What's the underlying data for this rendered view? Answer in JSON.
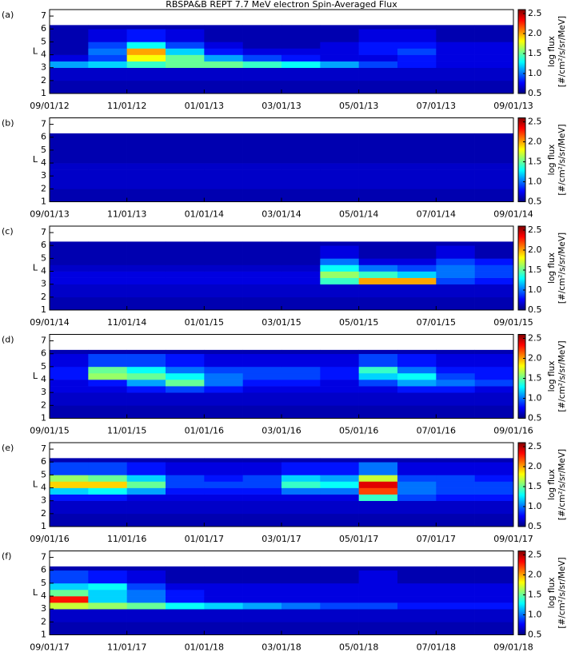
{
  "chart_data": [
    {
      "type": "heatmap",
      "title": "RBSPA&B REPT 7.7 MeV electron Spin-Averaged Flux",
      "label": "(a)",
      "ylabel": "L",
      "x_bins": [
        0,
        1,
        2,
        3,
        4,
        5,
        6,
        7,
        8,
        9,
        10,
        11,
        12
      ],
      "y_bins": [
        1,
        2,
        3,
        3.5,
        4,
        4.5,
        5,
        6,
        6.3
      ],
      "values": [
        [
          0.6,
          0.6,
          0.6,
          0.6,
          0.6,
          0.6,
          0.6,
          0.6,
          0.6,
          0.6,
          0.6,
          0.6
        ],
        [
          0.65,
          0.65,
          0.65,
          0.65,
          0.65,
          0.65,
          0.65,
          0.65,
          0.65,
          0.65,
          0.65,
          0.65
        ],
        [
          1.1,
          1.2,
          1.4,
          1.5,
          1.5,
          1.4,
          1.3,
          1.1,
          0.9,
          0.8,
          0.7,
          0.7
        ],
        [
          0.7,
          0.9,
          1.8,
          1.5,
          1.1,
          0.9,
          0.8,
          0.7,
          0.7,
          0.8,
          0.7,
          0.7
        ],
        [
          0.6,
          1.0,
          2.0,
          1.2,
          0.8,
          0.7,
          0.7,
          0.7,
          0.8,
          0.9,
          0.7,
          0.7
        ],
        [
          0.6,
          0.9,
          1.3,
          0.9,
          0.7,
          0.6,
          0.6,
          0.7,
          0.8,
          0.8,
          0.7,
          0.7
        ],
        [
          0.6,
          0.7,
          0.8,
          0.7,
          0.6,
          0.6,
          0.6,
          0.6,
          0.7,
          0.7,
          0.6,
          0.6
        ],
        [
          0.6,
          0.6,
          0.6,
          0.6,
          0.6,
          0.6,
          0.6,
          0.6,
          0.6,
          0.6,
          0.6,
          0.6
        ]
      ],
      "xlim": [
        0,
        12
      ],
      "ylim": [
        1,
        7.5
      ],
      "xticks": [
        {
          "value": 0,
          "label": "09/01/12"
        },
        {
          "value": 2,
          "label": "11/01/12"
        },
        {
          "value": 4,
          "label": "01/01/13"
        },
        {
          "value": 6,
          "label": "03/01/13"
        },
        {
          "value": 8,
          "label": "05/01/13"
        },
        {
          "value": 10,
          "label": "07/01/13"
        },
        {
          "value": 12,
          "label": "09/01/13"
        }
      ],
      "yticks": [
        1,
        2,
        3,
        4,
        5,
        6,
        7
      ],
      "clim": [
        0.5,
        2.6
      ],
      "cticks": [
        0.5,
        {
          "value": 1,
          "label": "1.0"
        },
        1.5,
        {
          "value": 2,
          "label": "2.0"
        },
        2.5
      ],
      "colorbar_label": [
        "log flux",
        "[#/cm²/s/sr/MeV]"
      ],
      "colormap": [
        "#00007f",
        "#0000ff",
        "#007fff",
        "#00ffff",
        "#7fff7f",
        "#ffff00",
        "#ff7f00",
        "#ff0000",
        "#7f0000"
      ]
    },
    {
      "type": "heatmap",
      "label": "(b)",
      "ylabel": "L",
      "x_bins": [
        0,
        1,
        2,
        3,
        4,
        5,
        6,
        7,
        8,
        9,
        10,
        11,
        12
      ],
      "y_bins": [
        1,
        2,
        3,
        3.5,
        4,
        4.5,
        5,
        6,
        6.3
      ],
      "values": [
        [
          0.6,
          0.6,
          0.6,
          0.6,
          0.6,
          0.6,
          0.6,
          0.6,
          0.6,
          0.6,
          0.6,
          0.6
        ],
        [
          0.65,
          0.65,
          0.65,
          0.65,
          0.65,
          0.65,
          0.65,
          0.65,
          0.65,
          0.65,
          0.65,
          0.65
        ],
        [
          0.65,
          0.65,
          0.65,
          0.65,
          0.65,
          0.65,
          0.65,
          0.65,
          0.65,
          0.65,
          0.65,
          0.65
        ],
        [
          0.65,
          0.65,
          0.65,
          0.65,
          0.65,
          0.65,
          0.65,
          0.65,
          0.65,
          0.65,
          0.65,
          0.65
        ],
        [
          0.6,
          0.6,
          0.6,
          0.6,
          0.6,
          0.6,
          0.6,
          0.6,
          0.6,
          0.6,
          0.6,
          0.6
        ],
        [
          0.6,
          0.6,
          0.6,
          0.6,
          0.6,
          0.6,
          0.6,
          0.6,
          0.6,
          0.6,
          0.6,
          0.6
        ],
        [
          0.6,
          0.6,
          0.6,
          0.6,
          0.6,
          0.6,
          0.6,
          0.6,
          0.6,
          0.6,
          0.6,
          0.6
        ],
        [
          0.6,
          0.6,
          0.6,
          0.6,
          0.6,
          0.6,
          0.6,
          0.6,
          0.6,
          0.6,
          0.6,
          0.6
        ]
      ],
      "xlim": [
        0,
        12
      ],
      "ylim": [
        1,
        7.5
      ],
      "xticks": [
        {
          "value": 0,
          "label": "09/01/13"
        },
        {
          "value": 2,
          "label": "11/01/13"
        },
        {
          "value": 4,
          "label": "01/01/14"
        },
        {
          "value": 6,
          "label": "03/01/14"
        },
        {
          "value": 8,
          "label": "05/01/14"
        },
        {
          "value": 10,
          "label": "07/01/14"
        },
        {
          "value": 12,
          "label": "09/01/14"
        }
      ],
      "yticks": [
        1,
        2,
        3,
        4,
        5,
        6,
        7
      ],
      "clim": [
        0.5,
        2.6
      ],
      "cticks": [
        0.5,
        {
          "value": 1,
          "label": "1.0"
        },
        1.5,
        {
          "value": 2,
          "label": "2.0"
        },
        2.5
      ],
      "colorbar_label": [
        "log flux",
        "[#/cm²/s/sr/MeV]"
      ],
      "colormap": [
        "#00007f",
        "#0000ff",
        "#007fff",
        "#00ffff",
        "#7fff7f",
        "#ffff00",
        "#ff7f00",
        "#ff0000",
        "#7f0000"
      ]
    },
    {
      "type": "heatmap",
      "label": "(c)",
      "ylabel": "L",
      "x_bins": [
        0,
        1,
        2,
        3,
        4,
        5,
        6,
        7,
        8,
        9,
        10,
        11,
        12
      ],
      "y_bins": [
        1,
        2,
        3,
        3.5,
        4,
        4.5,
        5,
        6,
        6.3
      ],
      "values": [
        [
          0.6,
          0.6,
          0.6,
          0.6,
          0.6,
          0.6,
          0.6,
          0.6,
          0.6,
          0.6,
          0.6,
          0.6
        ],
        [
          0.65,
          0.65,
          0.65,
          0.65,
          0.65,
          0.65,
          0.65,
          0.65,
          0.65,
          0.65,
          0.65,
          0.65
        ],
        [
          0.7,
          0.7,
          0.7,
          0.7,
          0.7,
          0.7,
          0.7,
          1.4,
          2.0,
          2.0,
          0.9,
          0.8
        ],
        [
          0.7,
          0.7,
          0.7,
          0.7,
          0.7,
          0.7,
          0.7,
          1.6,
          1.4,
          1.2,
          1.0,
          0.9
        ],
        [
          0.65,
          0.65,
          0.65,
          0.65,
          0.65,
          0.65,
          0.65,
          1.3,
          1.0,
          0.9,
          1.0,
          0.9
        ],
        [
          0.6,
          0.6,
          0.6,
          0.6,
          0.6,
          0.6,
          0.6,
          1.0,
          0.7,
          0.7,
          0.9,
          0.8
        ],
        [
          0.6,
          0.6,
          0.6,
          0.6,
          0.6,
          0.6,
          0.6,
          0.7,
          0.6,
          0.6,
          0.7,
          0.6
        ],
        [
          0.6,
          0.6,
          0.6,
          0.6,
          0.6,
          0.6,
          0.6,
          0.6,
          0.6,
          0.6,
          0.6,
          0.6
        ]
      ],
      "xlim": [
        0,
        12
      ],
      "ylim": [
        1,
        7.5
      ],
      "xticks": [
        {
          "value": 0,
          "label": "09/01/14"
        },
        {
          "value": 2,
          "label": "11/01/14"
        },
        {
          "value": 4,
          "label": "01/01/15"
        },
        {
          "value": 6,
          "label": "03/01/15"
        },
        {
          "value": 8,
          "label": "05/01/15"
        },
        {
          "value": 10,
          "label": "07/01/15"
        },
        {
          "value": 12,
          "label": "09/01/15"
        }
      ],
      "yticks": [
        1,
        2,
        3,
        4,
        5,
        6,
        7
      ],
      "clim": [
        0.5,
        2.6
      ],
      "cticks": [
        0.5,
        {
          "value": 1,
          "label": "1.0"
        },
        1.5,
        {
          "value": 2,
          "label": "2.0"
        },
        2.5
      ],
      "colorbar_label": [
        "log flux",
        "[#/cm²/s/sr/MeV]"
      ],
      "colormap": [
        "#00007f",
        "#0000ff",
        "#007fff",
        "#00ffff",
        "#7fff7f",
        "#ffff00",
        "#ff7f00",
        "#ff0000",
        "#7f0000"
      ]
    },
    {
      "type": "heatmap",
      "label": "(d)",
      "ylabel": "L",
      "x_bins": [
        0,
        1,
        2,
        3,
        4,
        5,
        6,
        7,
        8,
        9,
        10,
        11,
        12
      ],
      "y_bins": [
        1,
        2,
        3,
        3.5,
        4,
        4.5,
        5,
        6,
        6.3
      ],
      "values": [
        [
          0.6,
          0.6,
          0.6,
          0.6,
          0.6,
          0.6,
          0.6,
          0.6,
          0.6,
          0.6,
          0.6,
          0.6
        ],
        [
          0.65,
          0.65,
          0.65,
          0.65,
          0.65,
          0.65,
          0.65,
          0.65,
          0.65,
          0.65,
          0.65,
          0.65
        ],
        [
          0.7,
          0.7,
          0.8,
          0.9,
          0.8,
          0.7,
          0.7,
          0.7,
          0.7,
          0.8,
          0.8,
          0.7
        ],
        [
          0.7,
          0.8,
          1.1,
          1.5,
          1.0,
          0.8,
          0.8,
          0.7,
          0.9,
          1.1,
          1.0,
          0.9
        ],
        [
          0.8,
          1.6,
          1.5,
          1.3,
          1.0,
          0.9,
          0.9,
          0.8,
          1.2,
          1.3,
          0.9,
          0.8
        ],
        [
          0.8,
          1.5,
          1.3,
          1.0,
          0.9,
          0.9,
          0.9,
          0.8,
          1.4,
          1.0,
          0.8,
          0.8
        ],
        [
          0.7,
          0.9,
          0.9,
          0.8,
          0.7,
          0.7,
          0.7,
          0.7,
          0.9,
          0.8,
          0.7,
          0.7
        ],
        [
          0.6,
          0.6,
          0.6,
          0.6,
          0.6,
          0.6,
          0.6,
          0.6,
          0.6,
          0.6,
          0.6,
          0.6
        ]
      ],
      "xlim": [
        0,
        12
      ],
      "ylim": [
        1,
        7.5
      ],
      "xticks": [
        {
          "value": 0,
          "label": "09/01/15"
        },
        {
          "value": 2,
          "label": "11/01/15"
        },
        {
          "value": 4,
          "label": "01/01/16"
        },
        {
          "value": 6,
          "label": "03/01/16"
        },
        {
          "value": 8,
          "label": "05/01/16"
        },
        {
          "value": 10,
          "label": "07/01/16"
        },
        {
          "value": 12,
          "label": "09/01/16"
        }
      ],
      "yticks": [
        1,
        2,
        3,
        4,
        5,
        6,
        7
      ],
      "clim": [
        0.5,
        2.6
      ],
      "cticks": [
        0.5,
        {
          "value": 1,
          "label": "1.0"
        },
        1.5,
        {
          "value": 2,
          "label": "2.0"
        },
        2.5
      ],
      "colorbar_label": [
        "log flux",
        "[#/cm²/s/sr/MeV]"
      ],
      "colormap": [
        "#00007f",
        "#0000ff",
        "#007fff",
        "#00ffff",
        "#7fff7f",
        "#ffff00",
        "#ff7f00",
        "#ff0000",
        "#7f0000"
      ]
    },
    {
      "type": "heatmap",
      "label": "(e)",
      "ylabel": "L",
      "x_bins": [
        0,
        1,
        2,
        3,
        4,
        5,
        6,
        7,
        8,
        9,
        10,
        11,
        12
      ],
      "y_bins": [
        1,
        2,
        3,
        3.5,
        4,
        4.5,
        5,
        6,
        6.3
      ],
      "values": [
        [
          0.6,
          0.6,
          0.6,
          0.6,
          0.6,
          0.6,
          0.6,
          0.6,
          0.6,
          0.6,
          0.6,
          0.6
        ],
        [
          0.65,
          0.65,
          0.65,
          0.65,
          0.65,
          0.65,
          0.65,
          0.65,
          0.65,
          0.65,
          0.65,
          0.65
        ],
        [
          0.8,
          0.8,
          0.7,
          0.7,
          0.7,
          0.7,
          0.7,
          0.7,
          1.4,
          0.9,
          0.8,
          0.8
        ],
        [
          1.2,
          1.3,
          1.1,
          0.8,
          0.8,
          0.8,
          1.0,
          1.0,
          2.2,
          1.0,
          0.9,
          0.9
        ],
        [
          1.9,
          1.9,
          1.5,
          0.9,
          0.9,
          0.9,
          1.4,
          1.3,
          2.4,
          1.0,
          0.9,
          0.9
        ],
        [
          1.6,
          1.5,
          1.2,
          0.9,
          0.8,
          0.9,
          1.2,
          1.1,
          1.7,
          0.9,
          0.9,
          0.8
        ],
        [
          0.9,
          0.9,
          0.8,
          0.7,
          0.7,
          0.7,
          0.8,
          0.8,
          1.0,
          0.7,
          0.7,
          0.7
        ],
        [
          0.6,
          0.6,
          0.6,
          0.6,
          0.6,
          0.6,
          0.6,
          0.6,
          0.6,
          0.6,
          0.6,
          0.6
        ]
      ],
      "xlim": [
        0,
        12
      ],
      "ylim": [
        1,
        7.5
      ],
      "xticks": [
        {
          "value": 0,
          "label": "09/01/16"
        },
        {
          "value": 2,
          "label": "11/01/16"
        },
        {
          "value": 4,
          "label": "01/01/17"
        },
        {
          "value": 6,
          "label": "03/01/17"
        },
        {
          "value": 8,
          "label": "05/01/17"
        },
        {
          "value": 10,
          "label": "07/01/17"
        },
        {
          "value": 12,
          "label": "09/01/17"
        }
      ],
      "yticks": [
        1,
        2,
        3,
        4,
        5,
        6,
        7
      ],
      "clim": [
        0.5,
        2.6
      ],
      "cticks": [
        0.5,
        {
          "value": 1,
          "label": "1.0"
        },
        1.5,
        {
          "value": 2,
          "label": "2.0"
        },
        2.5
      ],
      "colorbar_label": [
        "log flux",
        "[#/cm²/s/sr/MeV]"
      ],
      "colormap": [
        "#00007f",
        "#0000ff",
        "#007fff",
        "#00ffff",
        "#7fff7f",
        "#ffff00",
        "#ff7f00",
        "#ff0000",
        "#7f0000"
      ]
    },
    {
      "type": "heatmap",
      "label": "(f)",
      "ylabel": "L",
      "x_bins": [
        0,
        1,
        2,
        3,
        4,
        5,
        6,
        7,
        8,
        9,
        10,
        11,
        12
      ],
      "y_bins": [
        1,
        2,
        3,
        3.5,
        4,
        4.5,
        5,
        6,
        6.3
      ],
      "values": [
        [
          0.6,
          0.6,
          0.6,
          0.6,
          0.6,
          0.6,
          0.6,
          0.6,
          0.6,
          0.6,
          0.6,
          0.6
        ],
        [
          0.65,
          0.65,
          0.65,
          0.65,
          0.65,
          0.65,
          0.65,
          0.65,
          0.65,
          0.65,
          0.65,
          0.65
        ],
        [
          1.7,
          1.6,
          1.5,
          1.3,
          1.2,
          1.1,
          1.0,
          0.9,
          0.9,
          0.8,
          0.8,
          0.8
        ],
        [
          2.3,
          1.2,
          1.0,
          0.8,
          0.7,
          0.7,
          0.7,
          0.7,
          0.7,
          0.7,
          0.7,
          0.7
        ],
        [
          1.5,
          1.2,
          1.0,
          0.8,
          0.7,
          0.7,
          0.7,
          0.7,
          0.7,
          0.7,
          0.7,
          0.7
        ],
        [
          1.2,
          1.3,
          0.9,
          0.7,
          0.7,
          0.7,
          0.7,
          0.7,
          0.7,
          0.7,
          0.7,
          0.7
        ],
        [
          0.9,
          0.8,
          0.7,
          0.6,
          0.6,
          0.6,
          0.6,
          0.6,
          0.7,
          0.6,
          0.6,
          0.6
        ],
        [
          0.6,
          0.6,
          0.6,
          0.6,
          0.6,
          0.6,
          0.6,
          0.6,
          0.6,
          0.6,
          0.6,
          0.6
        ]
      ],
      "xlim": [
        0,
        12
      ],
      "ylim": [
        1,
        7.5
      ],
      "xticks": [
        {
          "value": 0,
          "label": "09/01/17"
        },
        {
          "value": 2,
          "label": "11/01/17"
        },
        {
          "value": 4,
          "label": "01/01/18"
        },
        {
          "value": 6,
          "label": "03/01/18"
        },
        {
          "value": 8,
          "label": "05/01/18"
        },
        {
          "value": 10,
          "label": "07/01/18"
        },
        {
          "value": 12,
          "label": "09/01/18"
        }
      ],
      "yticks": [
        1,
        2,
        3,
        4,
        5,
        6,
        7
      ],
      "clim": [
        0.5,
        2.6
      ],
      "cticks": [
        0.5,
        {
          "value": 1,
          "label": "1.0"
        },
        1.5,
        {
          "value": 2,
          "label": "2.0"
        },
        2.5
      ],
      "colorbar_label": [
        "log flux",
        "[#/cm²/s/sr/MeV]"
      ],
      "colormap": [
        "#00007f",
        "#0000ff",
        "#007fff",
        "#00ffff",
        "#7fff7f",
        "#ffff00",
        "#ff7f00",
        "#ff0000",
        "#7f0000"
      ]
    }
  ]
}
